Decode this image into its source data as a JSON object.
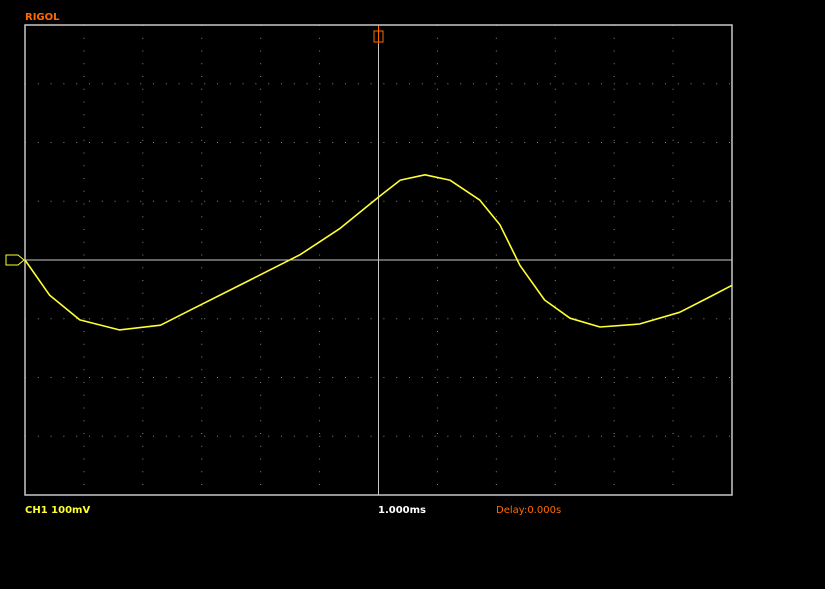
{
  "header": {
    "brand": "RIGOL"
  },
  "status": {
    "channel": "CH1 100mV",
    "timebase": "1.000ms",
    "delay": "Delay:0.000s"
  },
  "waveform": {
    "time_ms": [
      -6.0,
      -5.58,
      -5.07,
      -4.4,
      -3.7,
      -3.03,
      -2.18,
      -1.33,
      -0.65,
      0,
      0.37,
      0.79,
      1.21,
      1.72,
      2.06,
      2.4,
      2.82,
      3.25,
      3.76,
      4.43,
      5.11,
      5.62,
      6.0
    ],
    "volt_mV": [
      0,
      -60,
      -102,
      -119,
      -111,
      -77,
      -34,
      9,
      54,
      107,
      136,
      145,
      136,
      102,
      60,
      -9,
      -68,
      -99,
      -114,
      -109,
      -89,
      -63,
      -43
    ],
    "time_range_ms": [
      -6,
      6
    ],
    "volt_range_mV": [
      -400,
      400
    ],
    "color": "#ffff33"
  }
}
